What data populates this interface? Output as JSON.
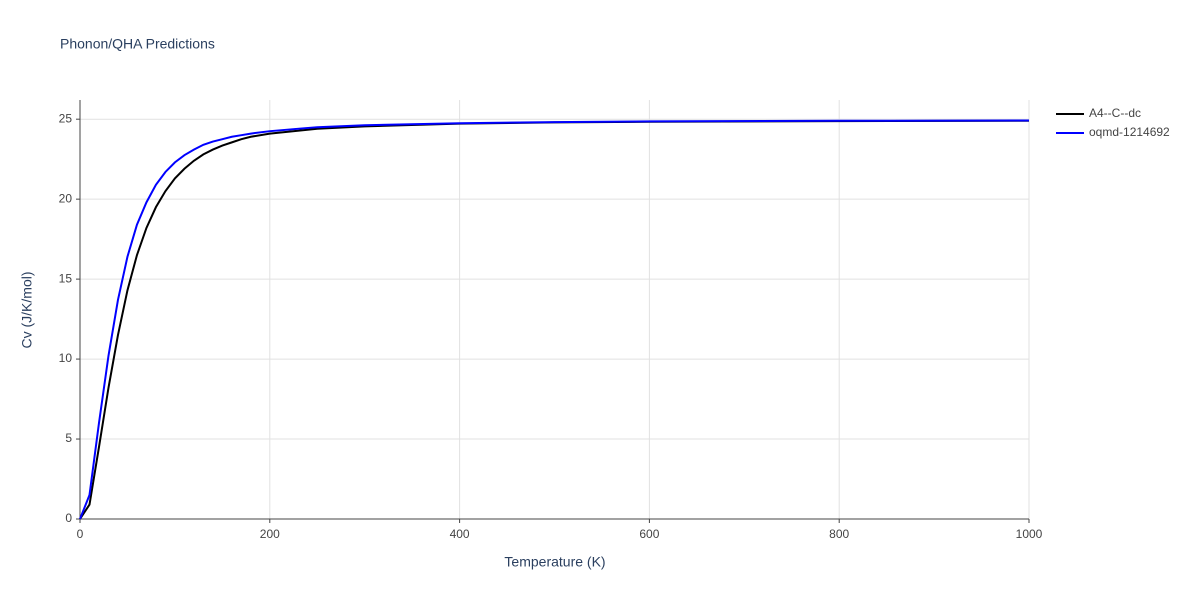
{
  "chart_data": {
    "type": "line",
    "title": "Phonon/QHA Predictions",
    "x_label": "Temperature (K)",
    "y_label": "Cv (J/K/mol)",
    "x": [
      0,
      10,
      20,
      30,
      40,
      50,
      60,
      70,
      80,
      90,
      100,
      110,
      120,
      130,
      140,
      150,
      160,
      170,
      180,
      200,
      250,
      300,
      400,
      500,
      600,
      800,
      1000
    ],
    "series": [
      {
        "name": "A4--C--dc",
        "color": "#000000",
        "values": [
          0,
          0.9,
          4.5,
          8.2,
          11.5,
          14.3,
          16.5,
          18.2,
          19.5,
          20.5,
          21.3,
          21.9,
          22.4,
          22.8,
          23.1,
          23.35,
          23.55,
          23.75,
          23.9,
          24.1,
          24.4,
          24.55,
          24.72,
          24.8,
          24.84,
          24.88,
          24.9
        ]
      },
      {
        "name": "oqmd-1214692",
        "color": "#0000ff",
        "values": [
          0,
          1.5,
          6,
          10.2,
          13.7,
          16.4,
          18.4,
          19.8,
          20.9,
          21.7,
          22.3,
          22.75,
          23.1,
          23.4,
          23.6,
          23.75,
          23.9,
          24.0,
          24.1,
          24.25,
          24.5,
          24.62,
          24.75,
          24.82,
          24.86,
          24.9,
          24.92
        ]
      }
    ],
    "xlim": [
      0,
      1000
    ],
    "ylim": [
      0,
      26.2
    ],
    "xticks": [
      0,
      200,
      400,
      600,
      800,
      1000
    ],
    "yticks": [
      0,
      5,
      10,
      15,
      20,
      25
    ],
    "grid": true,
    "legend": "top-right"
  }
}
